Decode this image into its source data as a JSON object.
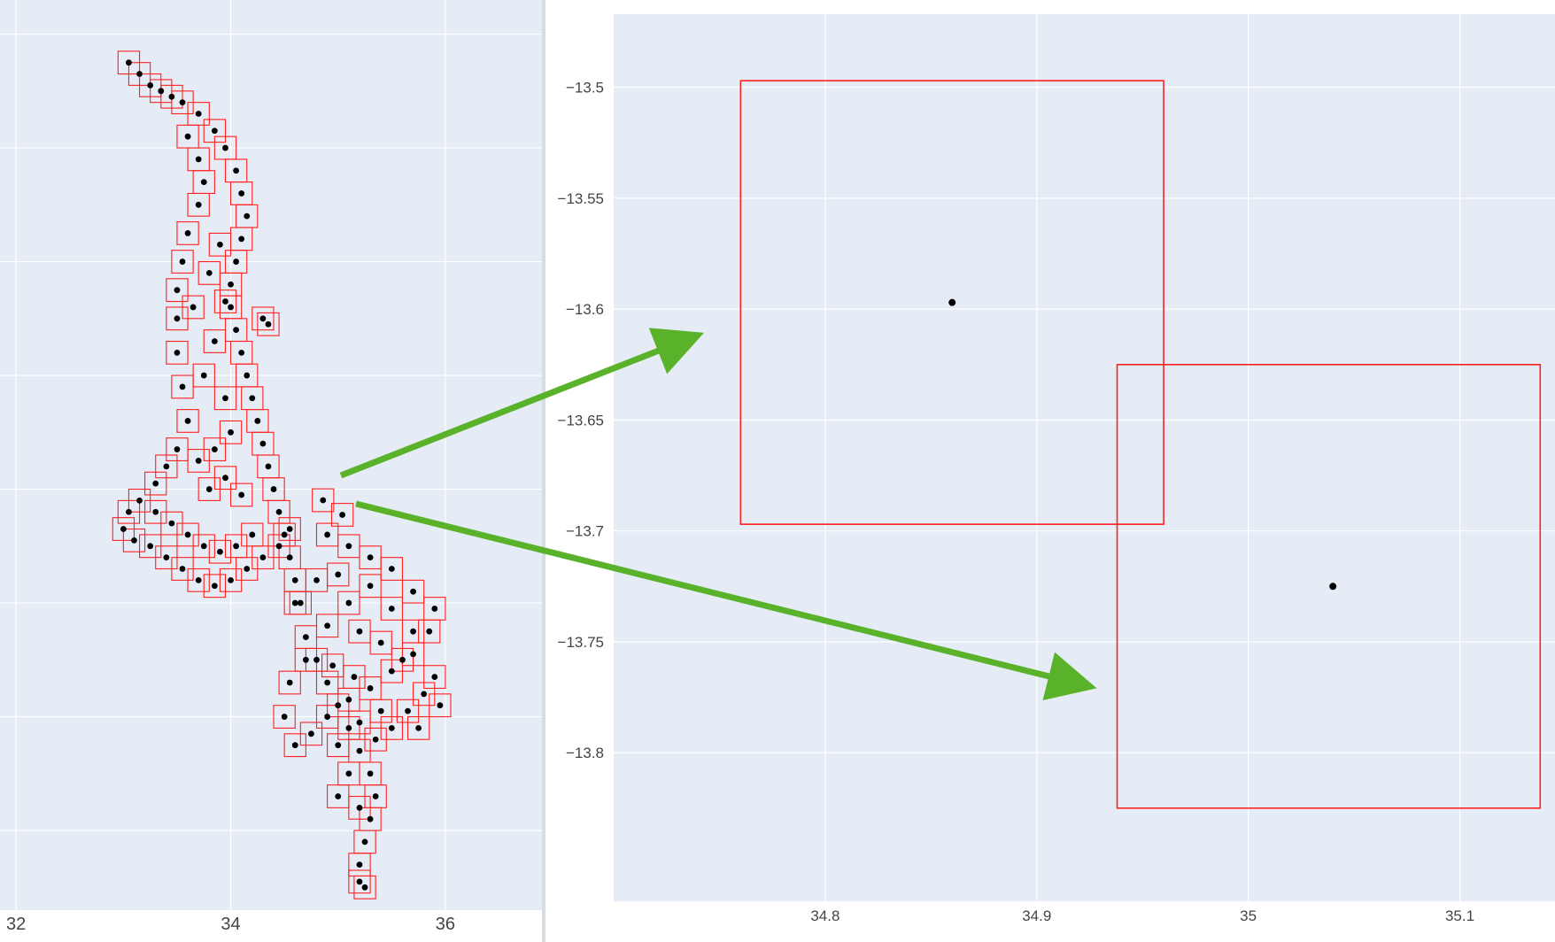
{
  "chart_data": [
    {
      "type": "scatter",
      "title": "",
      "xlabel": "",
      "ylabel": "",
      "xlim": [
        31.85,
        36.9
      ],
      "ylim": [
        -17.2,
        -9.2
      ],
      "x_ticks": [
        {
          "value": 32,
          "label": "32"
        },
        {
          "value": 34,
          "label": "34"
        },
        {
          "value": 36,
          "label": "36"
        }
      ],
      "y_grid": [
        -9.5,
        -10.5,
        -11.5,
        -12.5,
        -13.5,
        -14.5,
        -15.5,
        -16.5
      ],
      "grid": true,
      "plot_background": "#e5ecf6",
      "point_color": "#000000",
      "box_color": "#ff2020",
      "box_size_deg": 0.2,
      "highlighted_points": [
        {
          "x": 34.86,
          "y": -13.597
        },
        {
          "x": 35.04,
          "y": -13.725
        }
      ],
      "region_points": [
        [
          33.05,
          -9.75
        ],
        [
          33.15,
          -9.85
        ],
        [
          33.25,
          -9.95
        ],
        [
          33.35,
          -10.0
        ],
        [
          33.45,
          -10.05
        ],
        [
          33.55,
          -10.1
        ],
        [
          33.7,
          -10.2
        ],
        [
          33.85,
          -10.35
        ],
        [
          33.95,
          -10.5
        ],
        [
          34.05,
          -10.7
        ],
        [
          34.1,
          -10.9
        ],
        [
          34.15,
          -11.1
        ],
        [
          34.1,
          -11.3
        ],
        [
          34.05,
          -11.5
        ],
        [
          34.0,
          -11.7
        ],
        [
          34.0,
          -11.9
        ],
        [
          34.05,
          -12.1
        ],
        [
          34.1,
          -12.3
        ],
        [
          34.15,
          -12.5
        ],
        [
          34.2,
          -12.7
        ],
        [
          34.25,
          -12.9
        ],
        [
          34.3,
          -13.1
        ],
        [
          34.35,
          -13.3
        ],
        [
          34.4,
          -13.5
        ],
        [
          34.45,
          -13.7
        ],
        [
          34.5,
          -13.9
        ],
        [
          34.55,
          -14.1
        ],
        [
          34.6,
          -14.3
        ],
        [
          34.65,
          -14.5
        ],
        [
          34.7,
          -14.8
        ],
        [
          34.8,
          -15.0
        ],
        [
          34.9,
          -15.2
        ],
        [
          35.0,
          -15.4
        ],
        [
          35.1,
          -15.6
        ],
        [
          35.2,
          -15.8
        ],
        [
          35.3,
          -16.0
        ],
        [
          35.35,
          -16.2
        ],
        [
          35.3,
          -16.4
        ],
        [
          35.25,
          -16.6
        ],
        [
          35.2,
          -16.8
        ],
        [
          35.2,
          -16.95
        ],
        [
          35.25,
          -17.0
        ],
        [
          33.6,
          -10.4
        ],
        [
          33.7,
          -10.6
        ],
        [
          33.75,
          -10.8
        ],
        [
          33.7,
          -11.0
        ],
        [
          33.6,
          -11.25
        ],
        [
          33.55,
          -11.5
        ],
        [
          33.5,
          -11.75
        ],
        [
          33.5,
          -12.0
        ],
        [
          33.5,
          -12.3
        ],
        [
          33.55,
          -12.6
        ],
        [
          33.6,
          -12.9
        ],
        [
          33.5,
          -13.15
        ],
        [
          33.4,
          -13.3
        ],
        [
          33.3,
          -13.45
        ],
        [
          33.15,
          -13.6
        ],
        [
          33.05,
          -13.7
        ],
        [
          33.0,
          -13.85
        ],
        [
          33.1,
          -13.95
        ],
        [
          33.25,
          -14.0
        ],
        [
          33.4,
          -14.1
        ],
        [
          33.55,
          -14.2
        ],
        [
          33.7,
          -14.3
        ],
        [
          33.85,
          -14.35
        ],
        [
          34.0,
          -14.3
        ],
        [
          34.15,
          -14.2
        ],
        [
          34.3,
          -14.1
        ],
        [
          34.45,
          -14.0
        ],
        [
          34.55,
          -13.85
        ],
        [
          33.3,
          -13.7
        ],
        [
          33.45,
          -13.8
        ],
        [
          33.6,
          -13.9
        ],
        [
          33.75,
          -14.0
        ],
        [
          33.9,
          -14.05
        ],
        [
          34.05,
          -14.0
        ],
        [
          34.2,
          -13.9
        ],
        [
          33.8,
          -13.5
        ],
        [
          33.95,
          -13.4
        ],
        [
          34.1,
          -13.55
        ],
        [
          33.7,
          -13.25
        ],
        [
          33.85,
          -13.15
        ],
        [
          34.0,
          -13.0
        ],
        [
          33.95,
          -12.7
        ],
        [
          33.75,
          -12.5
        ],
        [
          33.85,
          -12.2
        ],
        [
          33.95,
          -11.85
        ],
        [
          33.8,
          -11.6
        ],
        [
          33.9,
          -11.35
        ],
        [
          33.65,
          -11.9
        ],
        [
          34.3,
          -12.0
        ],
        [
          34.35,
          -12.05
        ],
        [
          34.9,
          -13.9
        ],
        [
          35.1,
          -14.0
        ],
        [
          35.3,
          -14.1
        ],
        [
          35.5,
          -14.2
        ],
        [
          35.7,
          -14.4
        ],
        [
          35.9,
          -14.55
        ],
        [
          35.85,
          -14.75
        ],
        [
          35.7,
          -14.95
        ],
        [
          35.5,
          -15.1
        ],
        [
          35.3,
          -15.25
        ],
        [
          35.1,
          -15.35
        ],
        [
          34.9,
          -15.5
        ],
        [
          34.75,
          -15.65
        ],
        [
          34.6,
          -15.75
        ],
        [
          34.5,
          -15.5
        ],
        [
          34.55,
          -15.2
        ],
        [
          34.7,
          -15.0
        ],
        [
          34.9,
          -14.7
        ],
        [
          35.1,
          -14.5
        ],
        [
          35.3,
          -14.35
        ],
        [
          35.5,
          -14.55
        ],
        [
          35.7,
          -14.75
        ],
        [
          35.6,
          -15.0
        ],
        [
          35.4,
          -15.45
        ],
        [
          35.2,
          -15.55
        ],
        [
          35.0,
          -15.75
        ],
        [
          35.1,
          -16.0
        ],
        [
          35.0,
          -16.2
        ],
        [
          35.2,
          -16.3
        ],
        [
          35.35,
          -15.7
        ],
        [
          35.5,
          -15.6
        ],
        [
          35.65,
          -15.45
        ],
        [
          35.8,
          -15.3
        ],
        [
          35.9,
          -15.15
        ],
        [
          35.95,
          -15.4
        ],
        [
          35.75,
          -15.6
        ],
        [
          34.8,
          -14.3
        ],
        [
          34.6,
          -14.5
        ],
        [
          35.0,
          -14.25
        ],
        [
          35.2,
          -14.75
        ],
        [
          35.4,
          -14.85
        ],
        [
          34.95,
          -15.05
        ],
        [
          35.15,
          -15.15
        ]
      ]
    },
    {
      "type": "scatter",
      "title": "",
      "xlabel": "",
      "ylabel": "",
      "xlim": [
        34.7,
        35.145
      ],
      "ylim": [
        -13.867,
        -13.467
      ],
      "x_ticks": [
        {
          "value": 34.8,
          "label": "34.8"
        },
        {
          "value": 34.9,
          "label": "34.9"
        },
        {
          "value": 35.0,
          "label": "35"
        },
        {
          "value": 35.1,
          "label": "35.1"
        }
      ],
      "y_ticks": [
        {
          "value": -13.5,
          "label": "−13.5"
        },
        {
          "value": -13.55,
          "label": "−13.55"
        },
        {
          "value": -13.6,
          "label": "−13.6"
        },
        {
          "value": -13.65,
          "label": "−13.65"
        },
        {
          "value": -13.7,
          "label": "−13.7"
        },
        {
          "value": -13.75,
          "label": "−13.75"
        },
        {
          "value": -13.8,
          "label": "−13.8"
        }
      ],
      "grid": true,
      "plot_background": "#e5ecf6",
      "point_color": "#000000",
      "box_color": "#ff2020",
      "points": [
        {
          "x": 34.86,
          "y": -13.597,
          "box": {
            "x0": 34.76,
            "x1": 34.96,
            "y0": -13.697,
            "y1": -13.497
          }
        },
        {
          "x": 35.04,
          "y": -13.725,
          "box": {
            "x0": 34.938,
            "x1": 35.138,
            "y0": -13.825,
            "y1": -13.625
          }
        }
      ]
    }
  ],
  "annotations": {
    "arrow_color": "#5ab22a"
  }
}
